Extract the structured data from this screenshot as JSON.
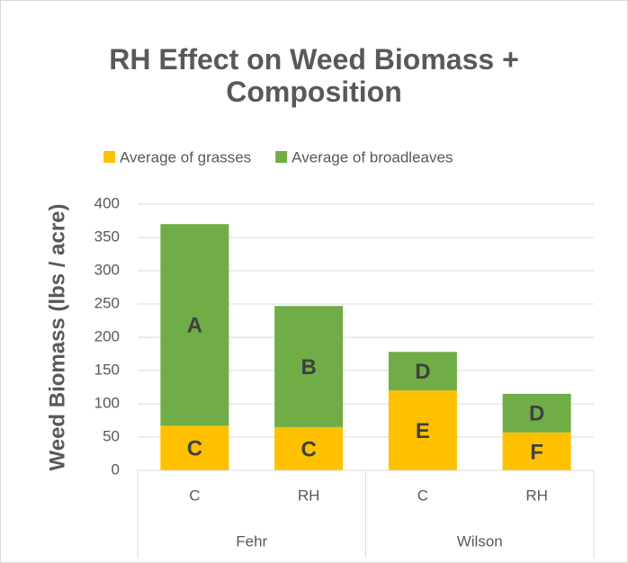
{
  "chart_data": {
    "type": "stacked_bar",
    "title": "RH Effect on Weed Biomass + Composition",
    "y_label": "Weed Biomass (lbs / acre)",
    "groups": [
      {
        "name": "Fehr",
        "categories": [
          "C",
          "RH"
        ]
      },
      {
        "name": "Wilson",
        "categories": [
          "C",
          "RH"
        ]
      }
    ],
    "series": [
      {
        "name": "Average of grasses",
        "color": "#FFC000",
        "values": [
          67,
          65,
          120,
          57
        ],
        "labels": [
          "C",
          "C",
          "E",
          "F"
        ]
      },
      {
        "name": "Average of broadleaves",
        "color": "#70AD47",
        "values": [
          303,
          182,
          58,
          58
        ],
        "labels": [
          "A",
          "B",
          "D",
          "D"
        ]
      }
    ],
    "ylim": [
      0,
      400
    ],
    "yticks": [
      0,
      50,
      100,
      150,
      200,
      250,
      300,
      350,
      400
    ],
    "grid": true,
    "legend": "top"
  }
}
